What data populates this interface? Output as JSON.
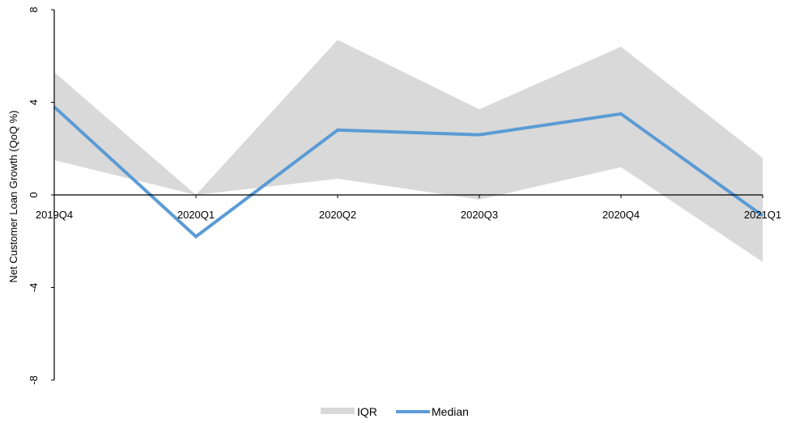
{
  "chart_data": {
    "type": "line",
    "title": "",
    "xlabel": "",
    "ylabel": "Net Customer Loan Growth (QoQ %)",
    "categories": [
      "2019Q4",
      "2020Q1",
      "2020Q2",
      "2020Q3",
      "2020Q4",
      "2021Q1"
    ],
    "yticks": [
      -8,
      -4,
      0,
      4,
      8
    ],
    "ylim": [
      -8,
      8
    ],
    "grid": false,
    "legend_position": "bottom",
    "band": {
      "name": "IQR",
      "color": "#d9d9d9",
      "lower": [
        1.5,
        0.0,
        0.7,
        -0.2,
        1.2,
        -2.9
      ],
      "upper": [
        5.3,
        0.0,
        6.7,
        3.7,
        6.4,
        1.6
      ]
    },
    "series": [
      {
        "name": "Median",
        "color": "#5b9bd5",
        "values": [
          3.8,
          -1.8,
          2.8,
          2.6,
          3.5,
          -0.9
        ]
      }
    ]
  }
}
